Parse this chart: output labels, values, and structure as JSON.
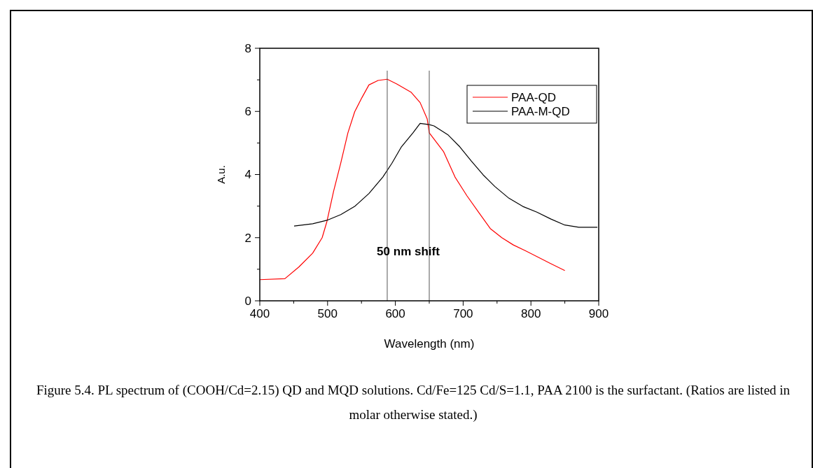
{
  "chart_data": {
    "type": "line",
    "xlabel": "Wavelength (nm)",
    "ylabel": "A.u.",
    "xlim": [
      400,
      900
    ],
    "ylim": [
      0,
      8
    ],
    "xticks": [
      400,
      {
        "value": 450,
        "label": null
      },
      500,
      {
        "value": 550,
        "label": null
      },
      600,
      {
        "value": 650,
        "label": null
      },
      700,
      {
        "value": 750,
        "label": null
      },
      800,
      {
        "value": 850,
        "label": null
      },
      900
    ],
    "yticks": [
      0,
      {
        "value": 1,
        "label": null
      },
      2,
      {
        "value": 3,
        "label": null
      },
      4,
      {
        "value": 5,
        "label": null
      },
      6,
      {
        "value": 7,
        "label": null
      },
      8
    ],
    "legend": "top right",
    "grid": false,
    "series": [
      {
        "name": "PAA-QD",
        "color": "#ff0000",
        "x": [
          400,
          437,
          457.5,
          478,
          492,
          499,
          509,
          519.5,
          530,
          540,
          550.5,
          561,
          574.5,
          588,
          602,
          623,
          636.5,
          647,
          650,
          671,
          688,
          705.5,
          722.6,
          740,
          757,
          774,
          791.5,
          808.8,
          829,
          850
        ],
        "values": [
          0.67,
          0.7,
          1.07,
          1.51,
          2.0,
          2.51,
          3.48,
          4.37,
          5.32,
          5.99,
          6.43,
          6.84,
          6.98,
          7.02,
          6.87,
          6.61,
          6.28,
          5.76,
          5.32,
          4.73,
          3.92,
          3.33,
          2.81,
          2.29,
          2.0,
          1.77,
          1.59,
          1.4,
          1.18,
          0.96
        ]
      },
      {
        "name": "PAA-M-QD",
        "color": "#000000",
        "x": [
          450.6,
          478,
          499,
          519.5,
          540,
          561,
          581.5,
          595,
          609,
          626,
          636.5,
          650,
          657,
          678,
          695,
          712,
          729.5,
          746.8,
          767.5,
          788,
          808.8,
          829.5,
          850,
          870.7,
          898
        ],
        "values": [
          2.37,
          2.44,
          2.55,
          2.73,
          2.99,
          3.4,
          3.92,
          4.36,
          4.88,
          5.32,
          5.62,
          5.58,
          5.54,
          5.25,
          4.88,
          4.43,
          3.99,
          3.62,
          3.25,
          2.99,
          2.81,
          2.59,
          2.4,
          2.33,
          2.33
        ]
      }
    ],
    "ref_lines": [
      {
        "axis": "x",
        "value": 588,
        "color": "#555555"
      },
      {
        "axis": "x",
        "value": 650,
        "color": "#555555"
      }
    ],
    "annotations": [
      "50 nm shift",
      "Figure 5.4. PL spectrum of (COOH/Cd=2.15) QD and MQD solutions.  Cd/Fe=125   Cd/S=1.1, PAA 2100 is the surfactant.  (Ratios are listed in molar otherwise stated.)"
    ]
  }
}
